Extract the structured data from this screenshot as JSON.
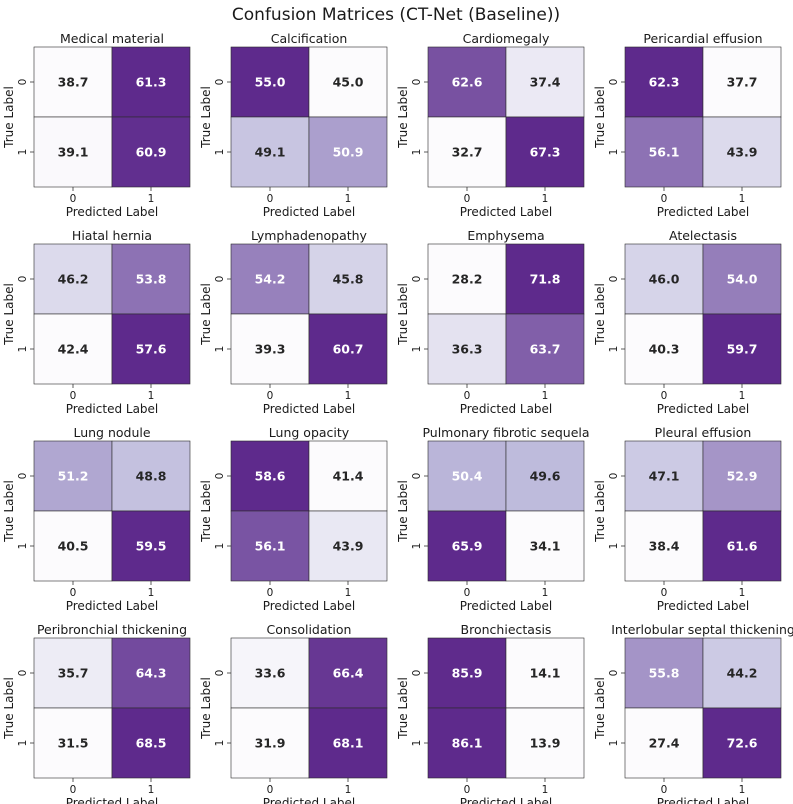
{
  "title": "Confusion Matrices (CT-Net (Baseline))",
  "colors": {
    "low": "#fcfbfd",
    "mid": "#bcb9db",
    "high": "#5e2a8c",
    "text_dark": "#262626",
    "text_light": "#ffffff"
  },
  "chart_data": [
    {
      "type": "heatmap",
      "title": "Medical material",
      "xlabel": "Predicted Label",
      "ylabel": "True Label",
      "x_ticks": [
        "0",
        "1"
      ],
      "y_ticks": [
        "0",
        "1"
      ],
      "values": [
        [
          38.7,
          61.3
        ],
        [
          39.1,
          60.9
        ]
      ]
    },
    {
      "type": "heatmap",
      "title": "Calcification",
      "xlabel": "Predicted Label",
      "ylabel": "True Label",
      "x_ticks": [
        "0",
        "1"
      ],
      "y_ticks": [
        "0",
        "1"
      ],
      "values": [
        [
          55.0,
          45.0
        ],
        [
          49.1,
          50.9
        ]
      ]
    },
    {
      "type": "heatmap",
      "title": "Cardiomegaly",
      "xlabel": "Predicted Label",
      "ylabel": "True Label",
      "x_ticks": [
        "0",
        "1"
      ],
      "y_ticks": [
        "0",
        "1"
      ],
      "values": [
        [
          62.6,
          37.4
        ],
        [
          32.7,
          67.3
        ]
      ]
    },
    {
      "type": "heatmap",
      "title": "Pericardial effusion",
      "xlabel": "Predicted Label",
      "ylabel": "True Label",
      "x_ticks": [
        "0",
        "1"
      ],
      "y_ticks": [
        "0",
        "1"
      ],
      "values": [
        [
          62.3,
          37.7
        ],
        [
          56.1,
          43.9
        ]
      ]
    },
    {
      "type": "heatmap",
      "title": "Hiatal hernia",
      "xlabel": "Predicted Label",
      "ylabel": "True Label",
      "x_ticks": [
        "0",
        "1"
      ],
      "y_ticks": [
        "0",
        "1"
      ],
      "values": [
        [
          46.2,
          53.8
        ],
        [
          42.4,
          57.6
        ]
      ]
    },
    {
      "type": "heatmap",
      "title": "Lymphadenopathy",
      "xlabel": "Predicted Label",
      "ylabel": "True Label",
      "x_ticks": [
        "0",
        "1"
      ],
      "y_ticks": [
        "0",
        "1"
      ],
      "values": [
        [
          54.2,
          45.8
        ],
        [
          39.3,
          60.7
        ]
      ]
    },
    {
      "type": "heatmap",
      "title": "Emphysema",
      "xlabel": "Predicted Label",
      "ylabel": "True Label",
      "x_ticks": [
        "0",
        "1"
      ],
      "y_ticks": [
        "0",
        "1"
      ],
      "values": [
        [
          28.2,
          71.8
        ],
        [
          36.3,
          63.7
        ]
      ]
    },
    {
      "type": "heatmap",
      "title": "Atelectasis",
      "xlabel": "Predicted Label",
      "ylabel": "True Label",
      "x_ticks": [
        "0",
        "1"
      ],
      "y_ticks": [
        "0",
        "1"
      ],
      "values": [
        [
          46.0,
          54.0
        ],
        [
          40.3,
          59.7
        ]
      ]
    },
    {
      "type": "heatmap",
      "title": "Lung nodule",
      "xlabel": "Predicted Label",
      "ylabel": "True Label",
      "x_ticks": [
        "0",
        "1"
      ],
      "y_ticks": [
        "0",
        "1"
      ],
      "values": [
        [
          51.2,
          48.8
        ],
        [
          40.5,
          59.5
        ]
      ]
    },
    {
      "type": "heatmap",
      "title": "Lung opacity",
      "xlabel": "Predicted Label",
      "ylabel": "True Label",
      "x_ticks": [
        "0",
        "1"
      ],
      "y_ticks": [
        "0",
        "1"
      ],
      "values": [
        [
          58.6,
          41.4
        ],
        [
          56.1,
          43.9
        ]
      ]
    },
    {
      "type": "heatmap",
      "title": "Pulmonary fibrotic sequela",
      "xlabel": "Predicted Label",
      "ylabel": "True Label",
      "x_ticks": [
        "0",
        "1"
      ],
      "y_ticks": [
        "0",
        "1"
      ],
      "values": [
        [
          50.4,
          49.6
        ],
        [
          65.9,
          34.1
        ]
      ]
    },
    {
      "type": "heatmap",
      "title": "Pleural effusion",
      "xlabel": "Predicted Label",
      "ylabel": "True Label",
      "x_ticks": [
        "0",
        "1"
      ],
      "y_ticks": [
        "0",
        "1"
      ],
      "values": [
        [
          47.1,
          52.9
        ],
        [
          38.4,
          61.6
        ]
      ]
    },
    {
      "type": "heatmap",
      "title": "Peribronchial thickening",
      "xlabel": "Predicted Label",
      "ylabel": "True Label",
      "x_ticks": [
        "0",
        "1"
      ],
      "y_ticks": [
        "0",
        "1"
      ],
      "values": [
        [
          35.7,
          64.3
        ],
        [
          31.5,
          68.5
        ]
      ]
    },
    {
      "type": "heatmap",
      "title": "Consolidation",
      "xlabel": "Predicted Label",
      "ylabel": "True Label",
      "x_ticks": [
        "0",
        "1"
      ],
      "y_ticks": [
        "0",
        "1"
      ],
      "values": [
        [
          33.6,
          66.4
        ],
        [
          31.9,
          68.1
        ]
      ]
    },
    {
      "type": "heatmap",
      "title": "Bronchiectasis",
      "xlabel": "Predicted Label",
      "ylabel": "True Label",
      "x_ticks": [
        "0",
        "1"
      ],
      "y_ticks": [
        "0",
        "1"
      ],
      "values": [
        [
          85.9,
          14.1
        ],
        [
          86.1,
          13.9
        ]
      ]
    },
    {
      "type": "heatmap",
      "title": "Interlobular septal thickening",
      "xlabel": "Predicted Label",
      "ylabel": "True Label",
      "x_ticks": [
        "0",
        "1"
      ],
      "y_ticks": [
        "0",
        "1"
      ],
      "values": [
        [
          55.8,
          44.2
        ],
        [
          27.4,
          72.6
        ]
      ]
    }
  ]
}
